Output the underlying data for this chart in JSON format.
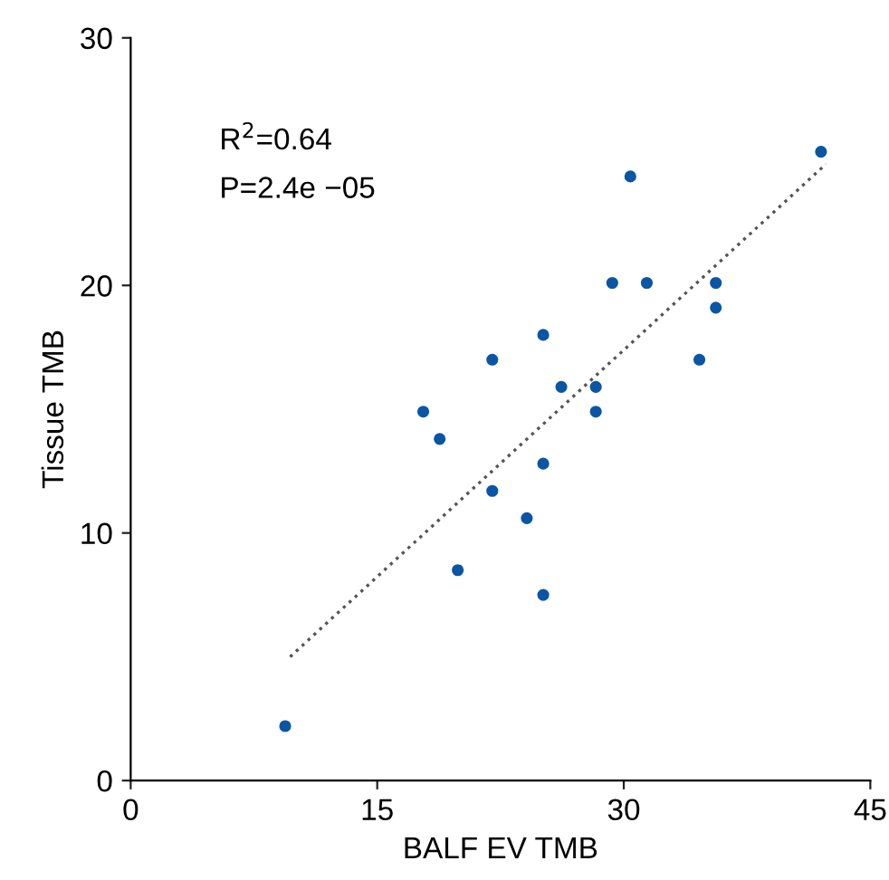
{
  "chart_data": {
    "type": "scatter",
    "xlabel": "BALF EV TMB",
    "ylabel": "Tissue TMB",
    "annotations": [
      "R$^{2}$=0.64",
      "P=2.4e −05"
    ],
    "xlim": [
      0,
      45
    ],
    "ylim": [
      0,
      30
    ],
    "xticks": [
      0,
      15,
      30,
      45
    ],
    "yticks": [
      0,
      10,
      20,
      30
    ],
    "grid": false,
    "marker": "circle",
    "series": [
      {
        "color": "#0b56a4",
        "x": [
          42.0,
          30.4,
          29.3,
          31.4,
          35.6,
          35.6,
          25.1,
          22.0,
          34.6,
          26.2,
          28.3,
          28.3,
          17.8,
          18.8,
          25.1,
          22.0,
          24.1,
          19.9,
          25.1,
          9.4
        ],
        "values": [
          25.4,
          24.4,
          20.1,
          20.1,
          20.1,
          19.1,
          18.0,
          17.0,
          17.0,
          15.9,
          15.9,
          14.9,
          14.9,
          13.8,
          12.8,
          11.7,
          10.6,
          8.5,
          7.5,
          2.2
        ]
      },
      {
        "type": "line",
        "color": "#555555",
        "line_style": "dotted",
        "marker": "none",
        "x": [
          9.7,
          42.3
        ],
        "values": [
          5.0,
          24.9
        ]
      }
    ]
  }
}
